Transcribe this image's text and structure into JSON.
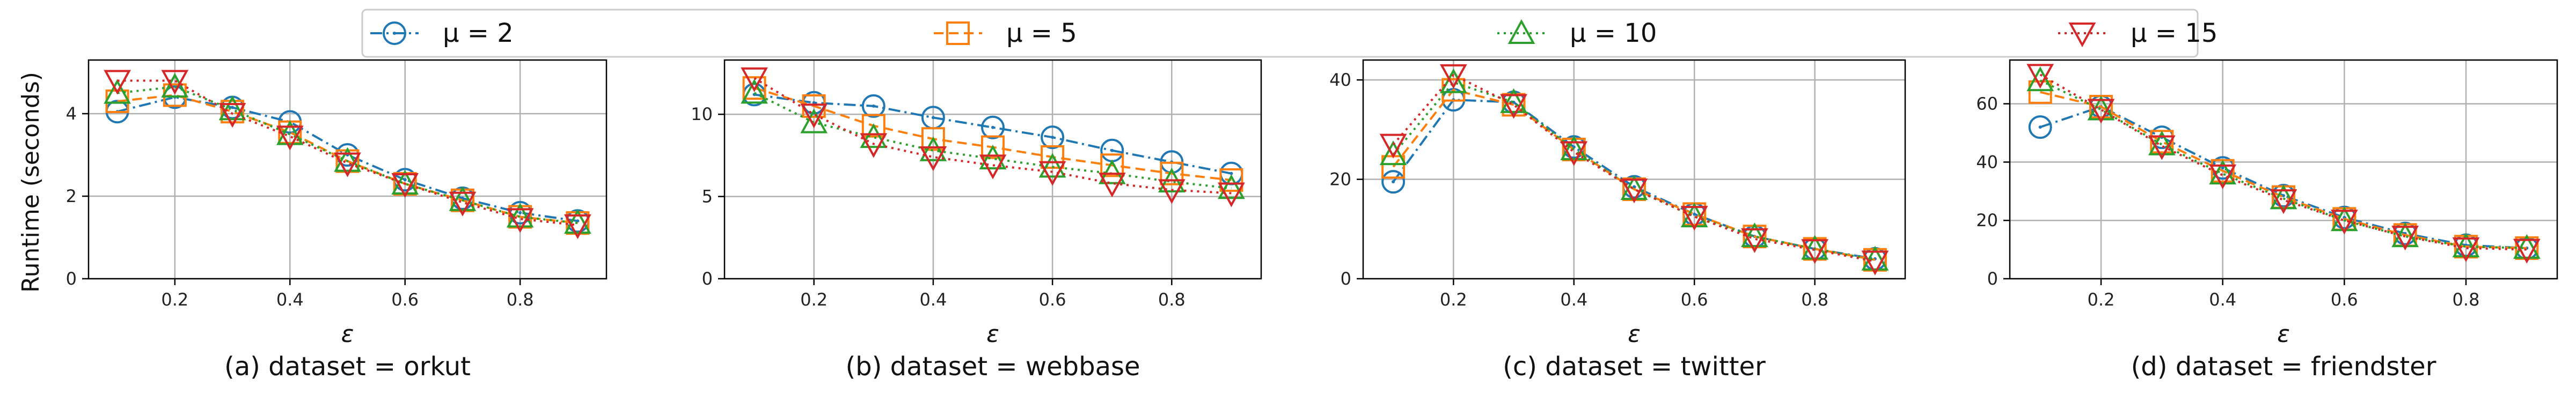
{
  "figure": {
    "ylabel": "Runtime (seconds)",
    "legend": {
      "placement": "top",
      "entries": [
        {
          "series": "mu2",
          "label": "μ = 2"
        },
        {
          "series": "mu5",
          "label": "μ = 5"
        },
        {
          "series": "mu10",
          "label": "μ = 10"
        },
        {
          "series": "mu15",
          "label": "μ = 15"
        }
      ]
    },
    "styles": {
      "mu2": {
        "color": "#1f77b4",
        "marker": "circle-dot",
        "dash": "dashdot"
      },
      "mu5": {
        "color": "#ff7f0e",
        "marker": "square",
        "dash": "dashed"
      },
      "mu10": {
        "color": "#2ca02c",
        "marker": "triangle-up",
        "dash": "dotted"
      },
      "mu15": {
        "color": "#d62728",
        "marker": "triangle-down",
        "dash": "dotted"
      }
    }
  },
  "chart_data": [
    {
      "type": "line",
      "caption": "(a) dataset = orkut",
      "xlabel": "ε",
      "ylabel": "Runtime (seconds)",
      "grid": true,
      "xlim": [
        0.05,
        0.95
      ],
      "ylim": [
        0,
        5.3
      ],
      "xticks": [
        "0.2",
        "0.4",
        "0.6",
        "0.8"
      ],
      "yticks": [
        "0",
        "2",
        "4"
      ],
      "x": [
        0.1,
        0.2,
        0.3,
        0.4,
        0.5,
        0.6,
        0.7,
        0.8,
        0.9
      ],
      "series": [
        {
          "name": "μ = 2",
          "key": "mu2",
          "values": [
            4.05,
            4.4,
            4.15,
            3.8,
            3.0,
            2.4,
            1.95,
            1.6,
            1.4
          ]
        },
        {
          "name": "μ = 5",
          "key": "mu5",
          "values": [
            4.3,
            4.45,
            4.05,
            3.55,
            2.85,
            2.3,
            1.9,
            1.5,
            1.35
          ]
        },
        {
          "name": "μ = 10",
          "key": "mu10",
          "values": [
            4.5,
            4.65,
            4.1,
            3.5,
            2.85,
            2.3,
            1.9,
            1.5,
            1.35
          ]
        },
        {
          "name": "μ = 15",
          "key": "mu15",
          "values": [
            4.8,
            4.8,
            4.0,
            3.45,
            2.8,
            2.3,
            1.85,
            1.45,
            1.3
          ]
        }
      ]
    },
    {
      "type": "line",
      "caption": "(b) dataset = webbase",
      "xlabel": "ε",
      "ylabel": "",
      "grid": true,
      "xlim": [
        0.05,
        0.95
      ],
      "ylim": [
        0,
        13.3
      ],
      "xticks": [
        "0.2",
        "0.4",
        "0.6",
        "0.8"
      ],
      "yticks": [
        "0",
        "5",
        "10"
      ],
      "x": [
        0.1,
        0.2,
        0.3,
        0.4,
        0.5,
        0.6,
        0.7,
        0.8,
        0.9
      ],
      "series": [
        {
          "name": "μ = 2",
          "key": "mu2",
          "values": [
            11.2,
            10.7,
            10.5,
            9.8,
            9.2,
            8.6,
            7.8,
            7.1,
            6.4
          ]
        },
        {
          "name": "μ = 5",
          "key": "mu5",
          "values": [
            11.6,
            10.5,
            9.3,
            8.5,
            8.0,
            7.4,
            6.9,
            6.4,
            6.0
          ]
        },
        {
          "name": "μ = 10",
          "key": "mu10",
          "values": [
            11.3,
            9.5,
            8.6,
            7.8,
            7.3,
            6.8,
            6.4,
            5.9,
            5.5
          ]
        },
        {
          "name": "μ = 15",
          "key": "mu15",
          "values": [
            12.2,
            10.0,
            8.2,
            7.4,
            6.9,
            6.5,
            5.8,
            5.4,
            5.2
          ]
        }
      ]
    },
    {
      "type": "line",
      "caption": "(c) dataset = twitter",
      "xlabel": "ε",
      "ylabel": "",
      "grid": true,
      "xlim": [
        0.05,
        0.95
      ],
      "ylim": [
        0,
        44
      ],
      "xticks": [
        "0.2",
        "0.4",
        "0.6",
        "0.8"
      ],
      "yticks": [
        "0",
        "20",
        "40"
      ],
      "x": [
        0.1,
        0.2,
        0.3,
        0.4,
        0.5,
        0.6,
        0.7,
        0.8,
        0.9
      ],
      "series": [
        {
          "name": "μ = 2",
          "key": "mu2",
          "values": [
            19.5,
            36.0,
            35.5,
            26.5,
            18.5,
            13.0,
            8.5,
            6.0,
            4.0
          ]
        },
        {
          "name": "μ = 5",
          "key": "mu5",
          "values": [
            22.5,
            38.0,
            35.0,
            26.0,
            18.0,
            13.0,
            8.5,
            6.0,
            3.8
          ]
        },
        {
          "name": "μ = 10",
          "key": "mu10",
          "values": [
            25.0,
            39.5,
            35.5,
            26.0,
            18.0,
            12.5,
            8.5,
            6.0,
            3.8
          ]
        },
        {
          "name": "μ = 15",
          "key": "mu15",
          "values": [
            27.0,
            41.0,
            35.0,
            25.5,
            18.0,
            12.5,
            8.0,
            5.8,
            3.5
          ]
        }
      ]
    },
    {
      "type": "line",
      "caption": "(d) dataset = friendster",
      "xlabel": "ε",
      "ylabel": "",
      "grid": true,
      "xlim": [
        0.05,
        0.95
      ],
      "ylim": [
        0,
        75
      ],
      "xticks": [
        "0.2",
        "0.4",
        "0.6",
        "0.8"
      ],
      "yticks": [
        "0",
        "20",
        "40",
        "60"
      ],
      "x": [
        0.1,
        0.2,
        0.3,
        0.4,
        0.5,
        0.6,
        0.7,
        0.8,
        0.9
      ],
      "series": [
        {
          "name": "μ = 2",
          "key": "mu2",
          "values": [
            52.0,
            59.0,
            48.5,
            38.0,
            28.5,
            21.0,
            15.5,
            11.5,
            10.5
          ]
        },
        {
          "name": "μ = 5",
          "key": "mu5",
          "values": [
            64.0,
            59.0,
            47.0,
            37.0,
            28.0,
            20.5,
            15.0,
            11.0,
            10.5
          ]
        },
        {
          "name": "μ = 10",
          "key": "mu10",
          "values": [
            68.0,
            58.0,
            46.0,
            36.0,
            27.5,
            20.0,
            14.5,
            11.0,
            10.5
          ]
        },
        {
          "name": "μ = 15",
          "key": "mu15",
          "values": [
            70.0,
            58.0,
            45.5,
            35.5,
            27.0,
            20.0,
            14.5,
            10.5,
            10.0
          ]
        }
      ]
    }
  ]
}
